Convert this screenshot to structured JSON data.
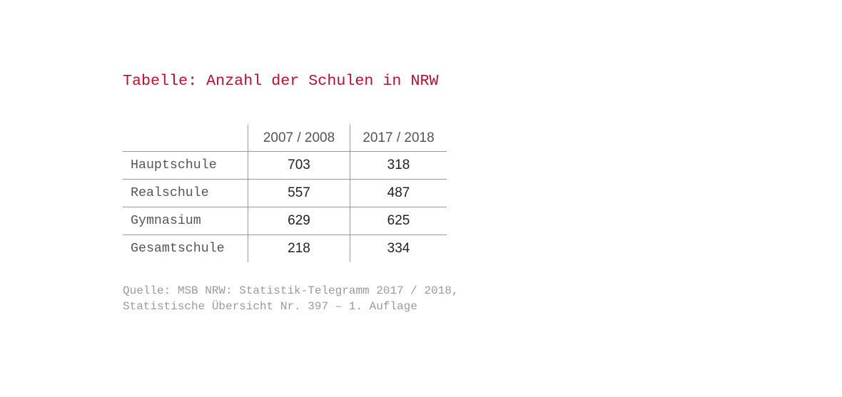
{
  "title": "Tabelle: Anzahl der Schulen in NRW",
  "table": {
    "columns": [
      "",
      "2007 / 2008",
      "2017 / 2018"
    ],
    "rows": [
      {
        "label": "Hauptschule",
        "values": [
          "703",
          "318"
        ]
      },
      {
        "label": "Realschule",
        "values": [
          "557",
          "487"
        ]
      },
      {
        "label": "Gymnasium",
        "values": [
          "629",
          "625"
        ]
      },
      {
        "label": "Gesamtschule",
        "values": [
          "218",
          "334"
        ]
      }
    ]
  },
  "source": {
    "line1": "Quelle: MSB NRW: Statistik-Telegramm 2017 / 2018,",
    "line2": "Statistische Übersicht Nr. 397 – 1. Auflage"
  },
  "colors": {
    "title": "#b0122f",
    "text": "#555555",
    "rule": "#9a9a9a",
    "source": "#9a9a9a"
  }
}
